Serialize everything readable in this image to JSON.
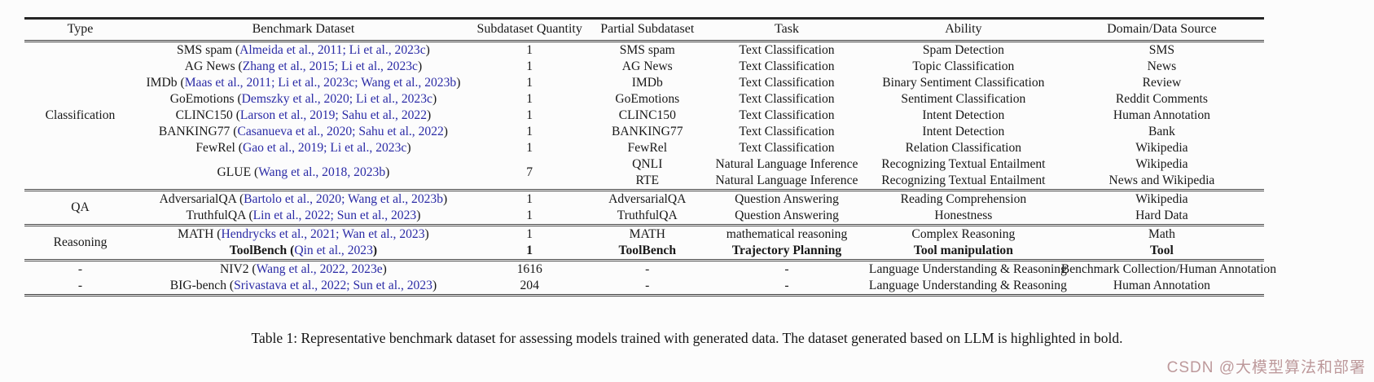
{
  "table": {
    "headers": [
      "Type",
      "Benchmark Dataset",
      "Subdataset Quantity",
      "Partial Subdataset",
      "Task",
      "Ability",
      "Domain/Data Source"
    ],
    "sections": [
      {
        "type": "Classification",
        "span_type": true,
        "rows": [
          {
            "name": "SMS spam",
            "cite": "Almeida et al., 2011; Li et al., 2023c",
            "qty": "1",
            "partial": "SMS spam",
            "task": "Text Classification",
            "ability": "Spam Detection",
            "domain": "SMS"
          },
          {
            "name": "AG News",
            "cite": "Zhang et al., 2015; Li et al., 2023c",
            "qty": "1",
            "partial": "AG News",
            "task": "Text Classification",
            "ability": "Topic Classification",
            "domain": "News"
          },
          {
            "name": "IMDb",
            "cite": "Maas et al., 2011; Li et al., 2023c; Wang et al., 2023b",
            "qty": "1",
            "partial": "IMDb",
            "task": "Text Classification",
            "ability": "Binary Sentiment Classification",
            "domain": "Review"
          },
          {
            "name": "GoEmotions",
            "cite": "Demszky et al., 2020; Li et al., 2023c",
            "qty": "1",
            "partial": "GoEmotions",
            "task": "Text Classification",
            "ability": "Sentiment Classification",
            "domain": "Reddit Comments"
          },
          {
            "name": "CLINC150",
            "cite": "Larson et al., 2019; Sahu et al., 2022",
            "qty": "1",
            "partial": "CLINC150",
            "task": "Text Classification",
            "ability": "Intent Detection",
            "domain": "Human Annotation"
          },
          {
            "name": "BANKING77",
            "cite": "Casanueva et al., 2020; Sahu et al., 2022",
            "qty": "1",
            "partial": "BANKING77",
            "task": "Text Classification",
            "ability": "Intent Detection",
            "domain": "Bank"
          },
          {
            "name": "FewRel",
            "cite": "Gao et al., 2019; Li et al., 2023c",
            "qty": "1",
            "partial": "FewRel",
            "task": "Text Classification",
            "ability": "Relation Classification",
            "domain": "Wikipedia"
          },
          {
            "name": "GLUE",
            "cite": "Wang et al., 2018, 2023b",
            "qty": "7",
            "span": 2,
            "partial": "QNLI",
            "task": "Natural Language Inference",
            "ability": "Recognizing Textual Entailment",
            "domain": "Wikipedia"
          },
          {
            "merge": true,
            "partial": "RTE",
            "task": "Natural Language Inference",
            "ability": "Recognizing Textual Entailment",
            "domain": "News and Wikipedia"
          }
        ]
      },
      {
        "type": "QA",
        "span_type": true,
        "rows": [
          {
            "name": "AdversarialQA",
            "cite": "Bartolo et al., 2020; Wang et al., 2023b",
            "qty": "1",
            "partial": "AdversarialQA",
            "task": "Question Answering",
            "ability": "Reading Comprehension",
            "domain": "Wikipedia"
          },
          {
            "name": "TruthfulQA",
            "cite": "Lin et al., 2022; Sun et al., 2023",
            "qty": "1",
            "partial": "TruthfulQA",
            "task": "Question Answering",
            "ability": "Honestness",
            "domain": "Hard Data"
          }
        ]
      },
      {
        "type": "Reasoning",
        "span_type": true,
        "rows": [
          {
            "name": "MATH",
            "cite": "Hendrycks et al., 2021; Wan et al., 2023",
            "qty": "1",
            "partial": "MATH",
            "task": "mathematical reasoning",
            "ability": "Complex Reasoning",
            "domain": "Math"
          },
          {
            "name": "ToolBench",
            "cite": "Qin et al., 2023",
            "qty": "1",
            "partial": "ToolBench",
            "task": "Trajectory Planning",
            "ability": "Tool manipulation",
            "domain": "Tool",
            "bold": true
          }
        ]
      },
      {
        "type": null,
        "span_type": false,
        "rows": [
          {
            "type": "-",
            "name": "NIV2",
            "cite": "Wang et al., 2022, 2023e",
            "qty": "1616",
            "partial": "-",
            "task": "-",
            "ability": "Language Understanding & Reasoning",
            "domain": "Benchmark Collection/Human Annotation"
          },
          {
            "type": "-",
            "name": "BIG-bench",
            "cite": "Srivastava et al., 2022; Sun et al., 2023",
            "qty": "204",
            "partial": "-",
            "task": "-",
            "ability": "Language Understanding & Reasoning",
            "domain": "Human Annotation"
          }
        ]
      }
    ]
  },
  "caption": "Table 1: Representative benchmark dataset for assessing models trained with generated data. The dataset generated based on LLM is highlighted in bold.",
  "watermark": "CSDN @大模型算法和部署",
  "colors": {
    "citation_link": "#2b2ba6",
    "text": "#181818",
    "watermark": "#b99496"
  }
}
